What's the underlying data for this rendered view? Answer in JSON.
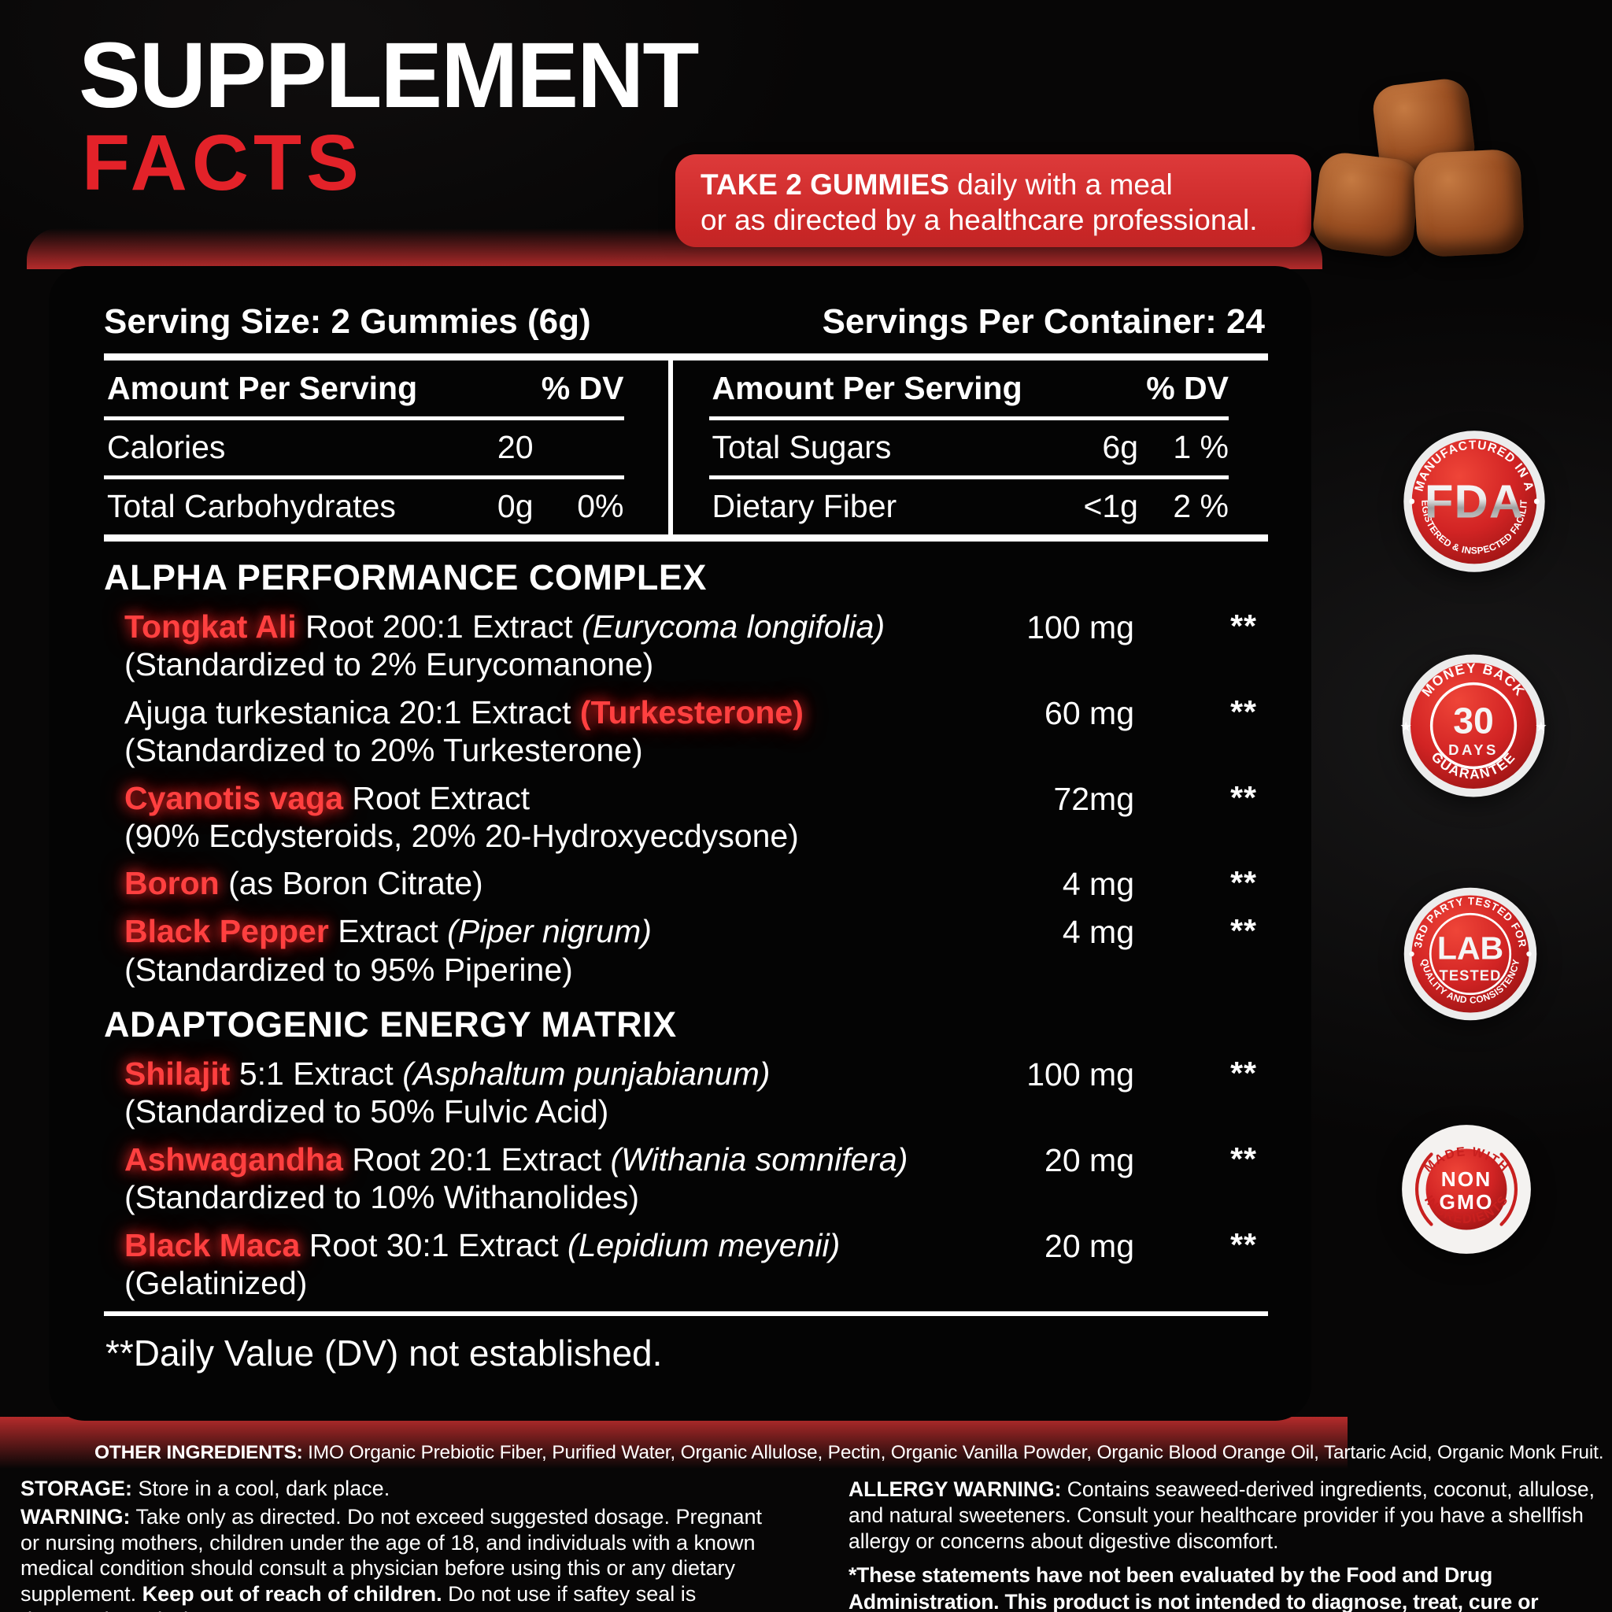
{
  "colors": {
    "accent_red": "#e32229",
    "banner_red": "#c52222",
    "glow_red": "#ff4040",
    "badge_red": "#c9201f"
  },
  "header": {
    "title_line1": "SUPPLEMENT",
    "title_line2": "FACTS",
    "dosage_bold": "TAKE 2 GUMMIES",
    "dosage_rest": " daily with a meal",
    "dosage_line2": "or as directed by a healthcare professional."
  },
  "panel": {
    "serving_size": "Serving Size: 2 Gummies (6g)",
    "servings_per_container": "Servings Per Container: 24",
    "table": {
      "header_label": "Amount Per Serving",
      "dv_label": "% DV",
      "left_rows": [
        {
          "name": "Calories",
          "amount": "20",
          "dv": ""
        },
        {
          "name": "Total Carbohydrates",
          "amount": "0g",
          "dv": "0%"
        }
      ],
      "right_rows": [
        {
          "name": "Total Sugars",
          "amount": "6g",
          "dv": "1 %"
        },
        {
          "name": "Dietary Fiber",
          "amount": "<1g",
          "dv": "2 %"
        }
      ]
    },
    "sections": [
      {
        "title": "ALPHA PERFORMANCE COMPLEX",
        "rows": [
          {
            "segments": [
              {
                "text": "Tongkat Ali",
                "style": "red"
              },
              {
                "text": " Root 200:1 Extract ",
                "style": "plain"
              },
              {
                "text": "(Eurycoma longifolia)",
                "style": "italic"
              }
            ],
            "subline": "(Standardized to 2% Eurycomanone)",
            "amount": "100 mg",
            "dv": "**"
          },
          {
            "segments": [
              {
                "text": "Ajuga turkestanica 20:1 Extract ",
                "style": "plain"
              },
              {
                "text": "(Turkesterone)",
                "style": "red"
              }
            ],
            "subline": "(Standardized to 20% Turkesterone)",
            "amount": "60 mg",
            "dv": "**"
          },
          {
            "segments": [
              {
                "text": "Cyanotis vaga",
                "style": "red"
              },
              {
                "text": " Root Extract",
                "style": "plain"
              }
            ],
            "subline": "(90% Ecdysteroids, 20% 20-Hydroxyecdysone)",
            "amount": "72mg",
            "dv": "**"
          },
          {
            "segments": [
              {
                "text": "Boron",
                "style": "red"
              },
              {
                "text": " (as Boron Citrate)",
                "style": "plain"
              }
            ],
            "subline": "",
            "amount": "4 mg",
            "dv": "**"
          },
          {
            "segments": [
              {
                "text": "Black Pepper",
                "style": "red"
              },
              {
                "text": " Extract ",
                "style": "plain"
              },
              {
                "text": "(Piper nigrum)",
                "style": "italic"
              }
            ],
            "subline": "(Standardized to 95% Piperine)",
            "amount": "4 mg",
            "dv": "**"
          }
        ]
      },
      {
        "title": "ADAPTOGENIC ENERGY MATRIX",
        "rows": [
          {
            "segments": [
              {
                "text": "Shilajit",
                "style": "red"
              },
              {
                "text": " 5:1 Extract ",
                "style": "plain"
              },
              {
                "text": "(Asphaltum punjabianum)",
                "style": "italic"
              }
            ],
            "subline": "(Standardized to 50% Fulvic Acid)",
            "amount": "100 mg",
            "dv": "**"
          },
          {
            "segments": [
              {
                "text": "Ashwagandha",
                "style": "red"
              },
              {
                "text": " Root 20:1 Extract ",
                "style": "plain"
              },
              {
                "text": "(Withania somnifera)",
                "style": "italic"
              }
            ],
            "subline": "(Standardized to 10% Withanolides)",
            "amount": "20 mg",
            "dv": "**"
          },
          {
            "segments": [
              {
                "text": "Black Maca",
                "style": "red"
              },
              {
                "text": " Root 30:1 Extract ",
                "style": "plain"
              },
              {
                "text": "(Lepidium meyenii)",
                "style": "italic"
              }
            ],
            "subline": "(Gelatinized)",
            "amount": "20 mg",
            "dv": "**"
          }
        ]
      }
    ],
    "footnote": "**Daily Value (DV) not established."
  },
  "badges": [
    {
      "type": "fda",
      "top_arc": "MANUFACTURED IN A",
      "center": "FDA",
      "bottom_arc": "REGISTERED & INSPECTED FACILITY"
    },
    {
      "type": "money-back",
      "top_arc": "MONEY BACK",
      "center_line1": "30",
      "center_line2": "DAYS",
      "bottom_arc": "GUARANTEE"
    },
    {
      "type": "lab-tested",
      "top_arc": "3RD PARTY TESTED FOR",
      "center_line1": "LAB",
      "center_line2": "TESTED",
      "bottom_arc": "QUALITY AND CONSISTENCY"
    },
    {
      "type": "non-gmo",
      "top_arc": "MADE WITH",
      "center_line1": "NON",
      "center_line2": "GMO",
      "bottom_arc": "INGREDIENTS"
    }
  ],
  "footer": {
    "other_ingredients": [
      {
        "text": "OTHER INGREDIENTS:",
        "bold": true
      },
      {
        "text": " IMO Organic Prebiotic Fiber, Purified Water, Organic Allulose, Pectin, Organic Vanilla Powder, Organic Blood Orange Oil, Tartaric Acid, Organic Monk Fruit.",
        "bold": false
      }
    ],
    "storage": [
      {
        "text": "STORAGE:",
        "bold": true
      },
      {
        "text": " Store in a cool, dark place.",
        "bold": false
      }
    ],
    "warning": [
      {
        "text": "WARNING:",
        "bold": true
      },
      {
        "text": " Take only as directed. Do not exceed suggested dosage. Pregnant or nursing mothers, children under the age of 18, and individuals with a known medical condition should consult a physician before using this or any dietary supplement. ",
        "bold": false
      },
      {
        "text": "Keep out of reach of children.",
        "bold": true
      },
      {
        "text": " Do not use if saftey seal is damaged or missing.",
        "bold": false
      }
    ],
    "allergy": [
      {
        "text": "ALLERGY WARNING:",
        "bold": true
      },
      {
        "text": " Contains seaweed-derived ingredients, coconut, allulose, and natural sweeteners. Consult your healthcare provider if you have a shellfish allergy or concerns about digestive discomfort.",
        "bold": false
      }
    ],
    "disclaimer": [
      {
        "text": "*These statements have not been evaluated by the Food and Drug Administration. This product is not intended to diagnose, treat, cure or prevent any disease.",
        "bold": true
      }
    ]
  }
}
